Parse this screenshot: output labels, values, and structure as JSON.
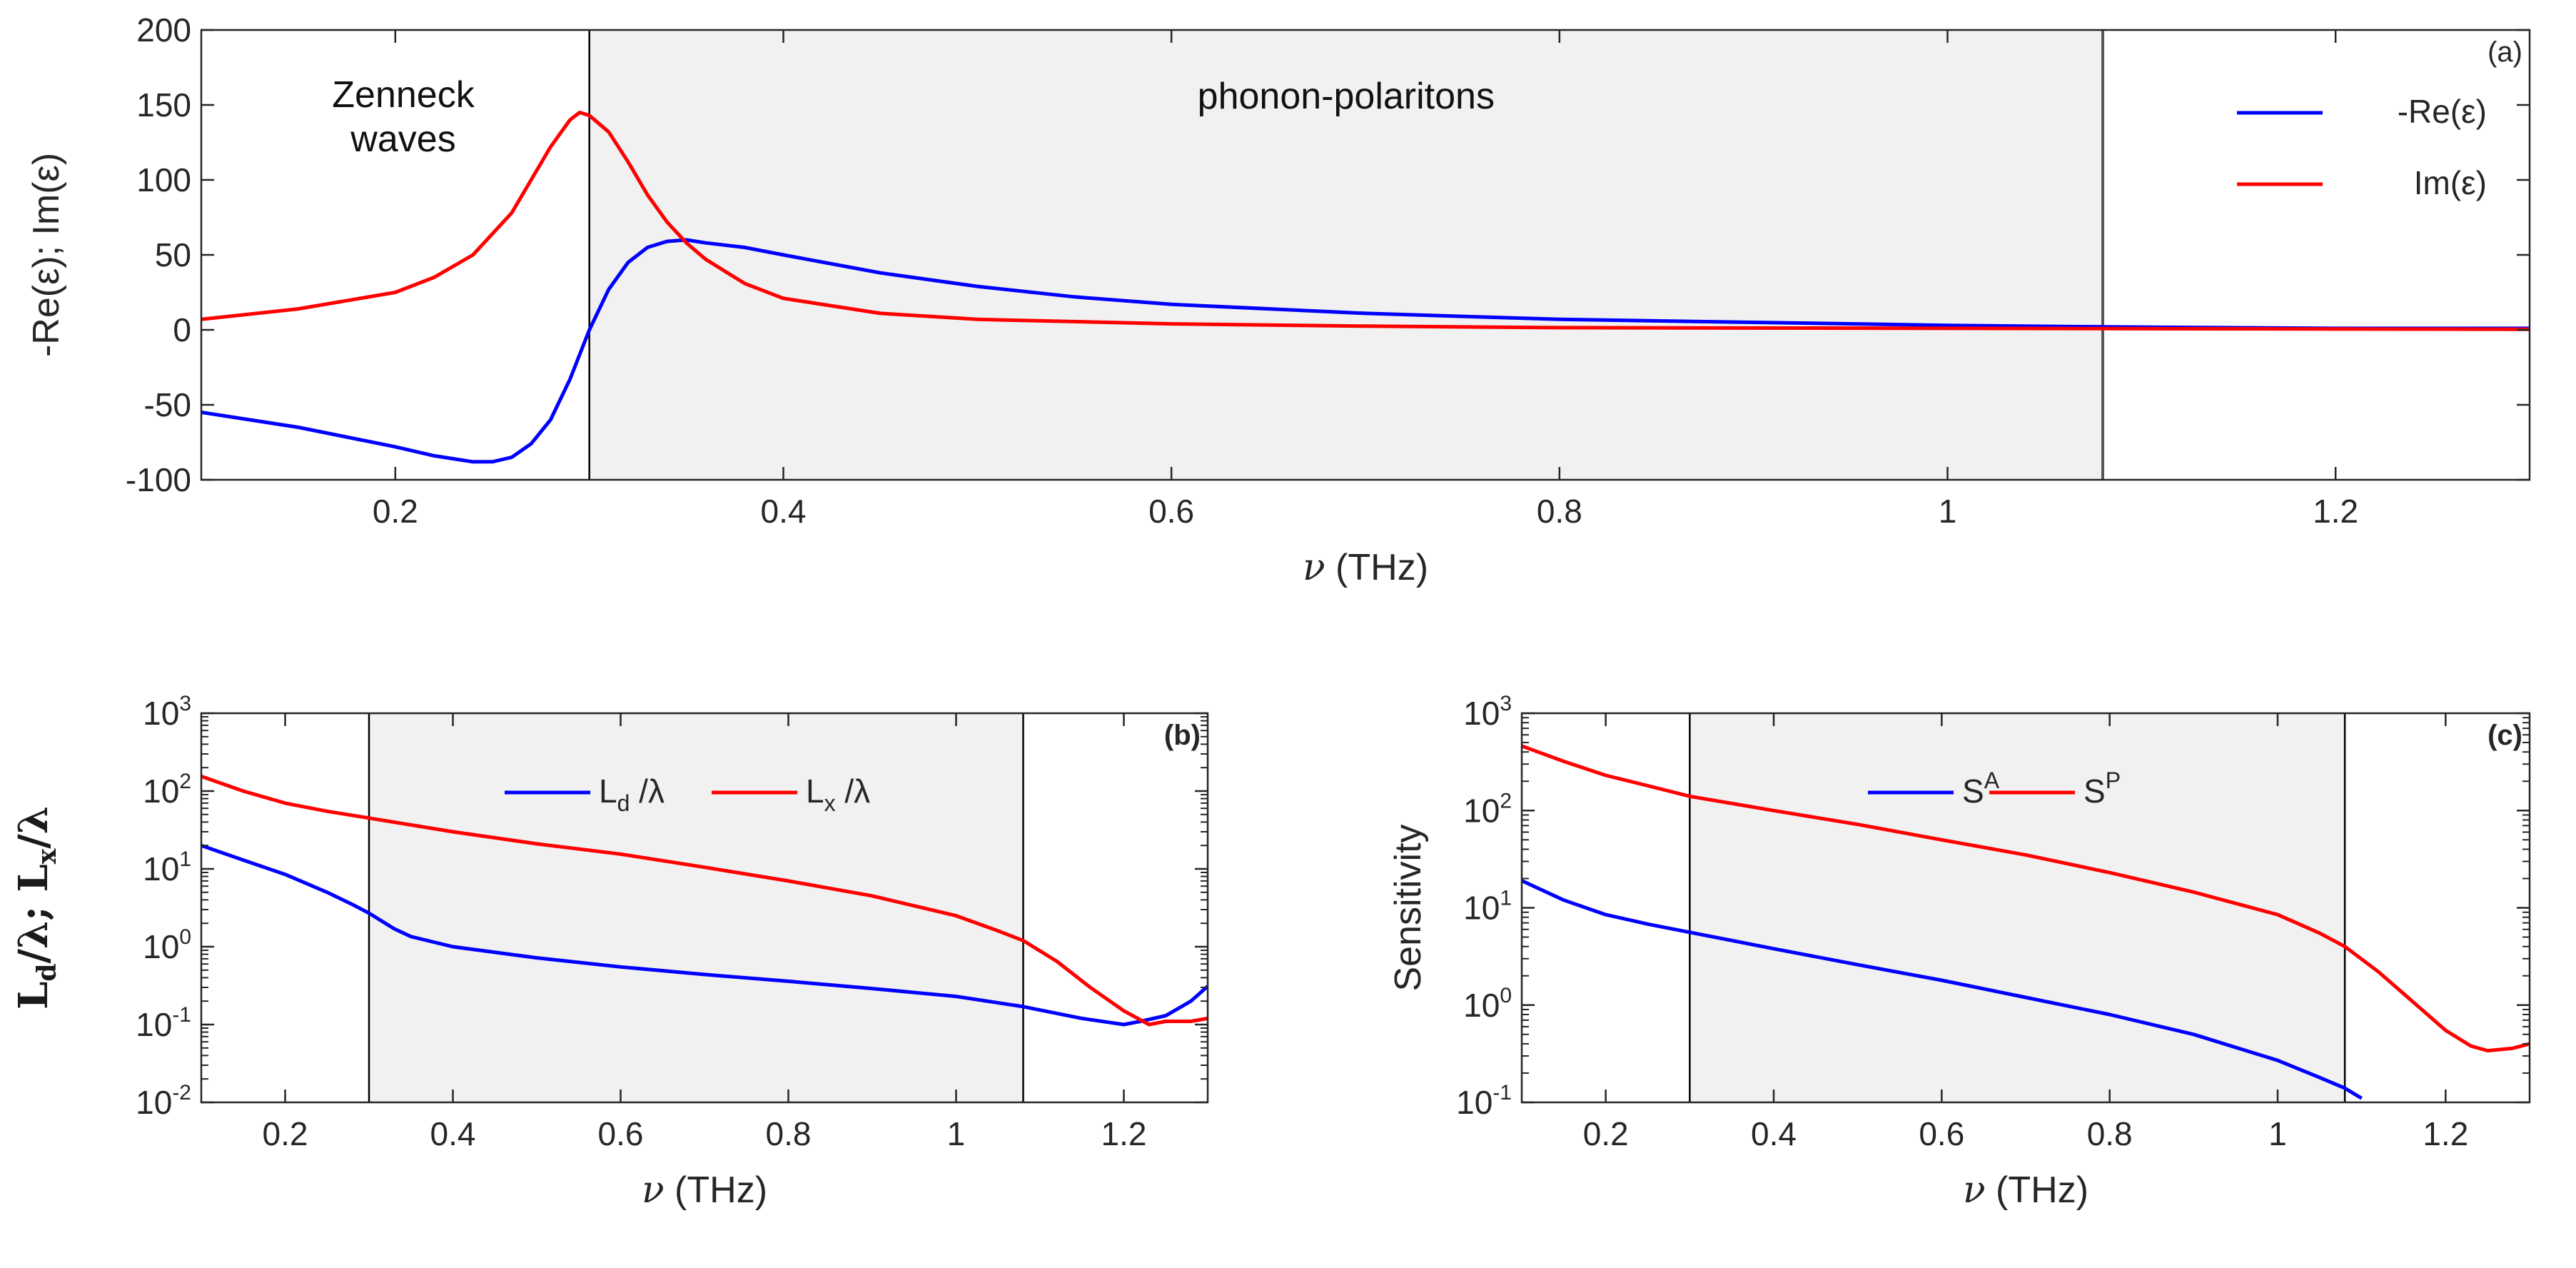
{
  "chart_data": [
    {
      "id": "a",
      "type": "line",
      "tag": "(a)",
      "yscale": "linear",
      "xlabel_symbol": "ν",
      "xlabel_unit": "(THz)",
      "ylabel": "-Re(ε); Im(ε)",
      "xlim": [
        0.1,
        1.3
      ],
      "ylim": [
        -100,
        200
      ],
      "xticks": [
        0.2,
        0.4,
        0.6,
        0.8,
        1.0,
        1.2
      ],
      "xtick_labels": [
        "0.2",
        "0.4",
        "0.6",
        "0.8",
        "1",
        "1.2"
      ],
      "yticks": [
        -100,
        -50,
        0,
        50,
        100,
        150,
        200
      ],
      "ytick_labels": [
        "-100",
        "-50",
        "0",
        "50",
        "100",
        "150",
        "200"
      ],
      "shaded_region": [
        0.3,
        1.08
      ],
      "region_labels": [
        "Zenneck",
        "waves",
        "phonon-polaritons"
      ],
      "legend_position": "top-right",
      "series": [
        {
          "name": "-Re(ε)",
          "color": "#0000ff",
          "x": [
            0.1,
            0.15,
            0.2,
            0.22,
            0.24,
            0.25,
            0.26,
            0.27,
            0.28,
            0.29,
            0.3,
            0.31,
            0.32,
            0.33,
            0.34,
            0.35,
            0.36,
            0.38,
            0.4,
            0.45,
            0.5,
            0.55,
            0.6,
            0.7,
            0.8,
            0.9,
            1.0,
            1.08,
            1.2,
            1.3
          ],
          "y": [
            -55,
            -65,
            -78,
            -84,
            -88,
            -88,
            -85,
            -76,
            -60,
            -33,
            0,
            27,
            45,
            55,
            59,
            60,
            58,
            55,
            50,
            38,
            29,
            22,
            17,
            11,
            7,
            5,
            3,
            2,
            1,
            1
          ]
        },
        {
          "name": "Im(ε)",
          "color": "#ff0000",
          "x": [
            0.1,
            0.15,
            0.2,
            0.22,
            0.24,
            0.26,
            0.27,
            0.28,
            0.29,
            0.295,
            0.3,
            0.31,
            0.32,
            0.33,
            0.34,
            0.35,
            0.36,
            0.38,
            0.4,
            0.45,
            0.5,
            0.6,
            0.7,
            0.8,
            1.0,
            1.08,
            1.3
          ],
          "y": [
            7,
            14,
            25,
            35,
            50,
            78,
            100,
            122,
            140,
            145,
            143,
            132,
            112,
            90,
            72,
            58,
            47,
            31,
            21,
            11,
            7,
            4,
            2.5,
            1.5,
            1,
            0.8,
            0.4
          ]
        }
      ]
    },
    {
      "id": "b",
      "type": "line",
      "tag": "(b)",
      "yscale": "log",
      "xlabel_symbol": "ν",
      "xlabel_unit": "(THz)",
      "ylabel": "Ld/λ; Lx/λ",
      "ylabel_parts": [
        "L",
        "d",
        "/λ; L",
        "x",
        "/λ"
      ],
      "xlim": [
        0.1,
        1.3
      ],
      "ylim": [
        0.01,
        1000
      ],
      "xticks": [
        0.2,
        0.4,
        0.6,
        0.8,
        1.0,
        1.2
      ],
      "xtick_labels": [
        "0.2",
        "0.4",
        "0.6",
        "0.8",
        "1",
        "1.2"
      ],
      "yticks": [
        0.01,
        0.1,
        1,
        10,
        100,
        1000
      ],
      "ytick_bases": [
        "10",
        "10",
        "10",
        "10",
        "10",
        "10"
      ],
      "ytick_exps": [
        "-2",
        "-1",
        "0",
        "1",
        "2",
        "3"
      ],
      "shaded_region": [
        0.3,
        1.08
      ],
      "legend_position": "top-center",
      "series": [
        {
          "name": "Ld/λ",
          "legend_parts": [
            "L",
            "d",
            " /λ"
          ],
          "color": "#0000ff",
          "x": [
            0.1,
            0.15,
            0.2,
            0.25,
            0.28,
            0.3,
            0.33,
            0.35,
            0.4,
            0.5,
            0.6,
            0.7,
            0.8,
            0.9,
            1.0,
            1.08,
            1.15,
            1.2,
            1.22,
            1.25,
            1.28,
            1.3
          ],
          "y": [
            20,
            13,
            8.5,
            5,
            3.5,
            2.7,
            1.7,
            1.35,
            1.0,
            0.72,
            0.55,
            0.44,
            0.36,
            0.29,
            0.23,
            0.17,
            0.12,
            0.1,
            0.11,
            0.13,
            0.2,
            0.31
          ]
        },
        {
          "name": "Lx/λ",
          "legend_parts": [
            "L",
            "x",
            " /λ"
          ],
          "color": "#ff0000",
          "x": [
            0.1,
            0.15,
            0.2,
            0.25,
            0.3,
            0.4,
            0.5,
            0.6,
            0.7,
            0.8,
            0.9,
            1.0,
            1.05,
            1.08,
            1.12,
            1.16,
            1.2,
            1.23,
            1.25,
            1.28,
            1.3
          ],
          "y": [
            155,
            100,
            70,
            55,
            45,
            30,
            21,
            15.5,
            10.5,
            7,
            4.5,
            2.5,
            1.6,
            1.2,
            0.65,
            0.3,
            0.15,
            0.1,
            0.11,
            0.11,
            0.12
          ]
        }
      ]
    },
    {
      "id": "c",
      "type": "line",
      "tag": "(c)",
      "yscale": "log",
      "xlabel_symbol": "ν",
      "xlabel_unit": "(THz)",
      "ylabel": "Sensitivity",
      "xlim": [
        0.1,
        1.3
      ],
      "ylim": [
        0.1,
        1000
      ],
      "xticks": [
        0.2,
        0.4,
        0.6,
        0.8,
        1.0,
        1.2
      ],
      "xtick_labels": [
        "0.2",
        "0.4",
        "0.6",
        "0.8",
        "1",
        "1.2"
      ],
      "yticks": [
        0.1,
        1,
        10,
        100,
        1000
      ],
      "ytick_bases": [
        "10",
        "10",
        "10",
        "10",
        "10"
      ],
      "ytick_exps": [
        "-1",
        "0",
        "1",
        "2",
        "3"
      ],
      "shaded_region": [
        0.3,
        1.08
      ],
      "legend_position": "top-center",
      "series": [
        {
          "name": "S^A",
          "legend_parts": [
            "S",
            "A"
          ],
          "color": "#0000ff",
          "x": [
            0.1,
            0.15,
            0.2,
            0.25,
            0.3,
            0.4,
            0.5,
            0.6,
            0.7,
            0.8,
            0.9,
            1.0,
            1.05,
            1.08,
            1.1
          ],
          "y": [
            19,
            12,
            8.5,
            6.8,
            5.6,
            3.8,
            2.6,
            1.8,
            1.2,
            0.8,
            0.5,
            0.27,
            0.18,
            0.14,
            0.11
          ]
        },
        {
          "name": "S^P",
          "legend_parts": [
            "S",
            "P"
          ],
          "color": "#ff0000",
          "x": [
            0.1,
            0.15,
            0.2,
            0.25,
            0.3,
            0.4,
            0.5,
            0.6,
            0.7,
            0.8,
            0.9,
            1.0,
            1.05,
            1.08,
            1.12,
            1.16,
            1.2,
            1.23,
            1.25,
            1.28,
            1.3
          ],
          "y": [
            460,
            320,
            230,
            180,
            140,
            100,
            72,
            50,
            35,
            23,
            14.5,
            8.5,
            5.5,
            4,
            2.2,
            1.1,
            0.55,
            0.38,
            0.34,
            0.36,
            0.4
          ]
        }
      ]
    }
  ]
}
